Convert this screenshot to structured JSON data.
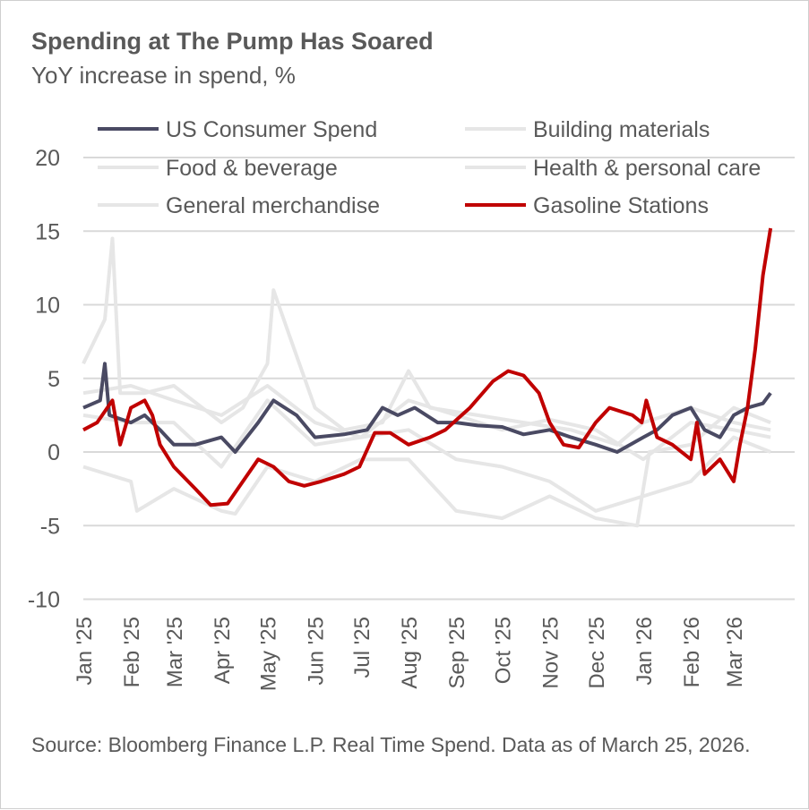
{
  "title": "Spending at The Pump Has Soared",
  "subtitle": "YoY increase in spend, %",
  "source": "Source: Bloomberg Finance L.P. Real Time Spend. Data as of March 25, 2026.",
  "chart_data": {
    "type": "line",
    "title": "Spending at The Pump Has Soared",
    "ylabel": "YoY increase in spend, %",
    "ylim": [
      -10,
      20
    ],
    "yticks": [
      "20",
      "15",
      "10",
      "5",
      "0",
      "-5",
      "-10"
    ],
    "ytick_values": [
      20,
      15,
      10,
      5,
      0,
      -5,
      -10
    ],
    "xlim": [
      "2025-01-01",
      "2026-03-25"
    ],
    "xticks": [
      "Jan '25",
      "Feb '25",
      "Mar '25",
      "Apr '25",
      "May '25",
      "Jun '25",
      "Jul '25",
      "Aug '25",
      "Sep '25",
      "Oct '25",
      "Nov '25",
      "Dec '25",
      "Jan '26",
      "Feb '26",
      "Mar '26"
    ],
    "xtick_dates": [
      "2025-01-01",
      "2025-02-01",
      "2025-03-01",
      "2025-04-01",
      "2025-05-01",
      "2025-06-01",
      "2025-07-01",
      "2025-08-01",
      "2025-09-01",
      "2025-10-01",
      "2025-11-01",
      "2025-12-01",
      "2026-01-01",
      "2026-02-01",
      "2026-03-01"
    ],
    "grid": true,
    "legend_position": "top",
    "series": [
      {
        "name": "Building materials",
        "color": "#e6e6e6",
        "points": [
          [
            "2025-01-01",
            6
          ],
          [
            "2025-01-15",
            9
          ],
          [
            "2025-01-20",
            14.5
          ],
          [
            "2025-01-25",
            4
          ],
          [
            "2025-02-10",
            4
          ],
          [
            "2025-03-01",
            4.5
          ],
          [
            "2025-04-01",
            2
          ],
          [
            "2025-04-15",
            3
          ],
          [
            "2025-05-01",
            6
          ],
          [
            "2025-05-05",
            11
          ],
          [
            "2025-05-15",
            8
          ],
          [
            "2025-06-01",
            3
          ],
          [
            "2025-06-20",
            1.5
          ],
          [
            "2025-07-15",
            2
          ],
          [
            "2025-08-01",
            5.5
          ],
          [
            "2025-08-15",
            3
          ],
          [
            "2025-09-15",
            2.5
          ],
          [
            "2025-10-15",
            2
          ],
          [
            "2025-11-15",
            1.5
          ],
          [
            "2025-12-15",
            0.5
          ],
          [
            "2026-01-01",
            2
          ],
          [
            "2026-02-01",
            3
          ],
          [
            "2026-03-01",
            2
          ],
          [
            "2026-03-25",
            1.5
          ]
        ]
      },
      {
        "name": "Food & beverage",
        "color": "#e6e6e6",
        "points": [
          [
            "2025-01-01",
            4
          ],
          [
            "2025-02-01",
            4.5
          ],
          [
            "2025-03-01",
            3.5
          ],
          [
            "2025-04-01",
            2.5
          ],
          [
            "2025-05-01",
            4.5
          ],
          [
            "2025-06-01",
            2
          ],
          [
            "2025-07-01",
            1
          ],
          [
            "2025-08-01",
            3.5
          ],
          [
            "2025-09-01",
            2.5
          ],
          [
            "2025-10-01",
            1.5
          ],
          [
            "2025-11-01",
            2.2
          ],
          [
            "2025-12-01",
            1.5
          ],
          [
            "2026-01-01",
            -0.5
          ],
          [
            "2026-02-01",
            2
          ],
          [
            "2026-03-01",
            1.5
          ],
          [
            "2026-03-25",
            1
          ]
        ]
      },
      {
        "name": "Health & personal care",
        "color": "#e6e6e6",
        "points": [
          [
            "2025-01-01",
            -1
          ],
          [
            "2025-02-01",
            -2
          ],
          [
            "2025-02-05",
            -4
          ],
          [
            "2025-03-01",
            -2.5
          ],
          [
            "2025-04-01",
            -4
          ],
          [
            "2025-04-10",
            -4.2
          ],
          [
            "2025-05-01",
            -1
          ],
          [
            "2025-06-01",
            -2
          ],
          [
            "2025-07-01",
            -0.5
          ],
          [
            "2025-08-01",
            -0.5
          ],
          [
            "2025-09-01",
            -4
          ],
          [
            "2025-10-01",
            -4.5
          ],
          [
            "2025-11-01",
            -3
          ],
          [
            "2025-12-01",
            -4.5
          ],
          [
            "2025-12-28",
            -5
          ],
          [
            "2026-01-05",
            0
          ],
          [
            "2026-02-01",
            0.5
          ],
          [
            "2026-03-01",
            3
          ],
          [
            "2026-03-25",
            2
          ]
        ]
      },
      {
        "name": "General merchandise",
        "color": "#e6e6e6",
        "points": [
          [
            "2025-01-01",
            2.5
          ],
          [
            "2025-02-01",
            2
          ],
          [
            "2025-03-01",
            2
          ],
          [
            "2025-04-01",
            -1
          ],
          [
            "2025-05-01",
            3.5
          ],
          [
            "2025-06-01",
            0.5
          ],
          [
            "2025-07-01",
            1
          ],
          [
            "2025-08-01",
            1.5
          ],
          [
            "2025-09-01",
            -0.5
          ],
          [
            "2025-10-01",
            -1
          ],
          [
            "2025-11-01",
            -2
          ],
          [
            "2025-12-01",
            -4
          ],
          [
            "2026-01-01",
            -3
          ],
          [
            "2026-02-01",
            -2
          ],
          [
            "2026-03-01",
            1
          ],
          [
            "2026-03-25",
            0
          ]
        ]
      },
      {
        "name": "US Consumer Spend",
        "color": "#4a4a63",
        "points": [
          [
            "2025-01-01",
            3
          ],
          [
            "2025-01-12",
            3.5
          ],
          [
            "2025-01-15",
            6
          ],
          [
            "2025-01-18",
            2.5
          ],
          [
            "2025-02-01",
            2
          ],
          [
            "2025-02-10",
            2.5
          ],
          [
            "2025-02-20",
            1.5
          ],
          [
            "2025-03-01",
            0.5
          ],
          [
            "2025-03-15",
            0.5
          ],
          [
            "2025-04-01",
            1
          ],
          [
            "2025-04-10",
            0
          ],
          [
            "2025-04-25",
            2
          ],
          [
            "2025-05-05",
            3.5
          ],
          [
            "2025-05-20",
            2.5
          ],
          [
            "2025-06-01",
            1
          ],
          [
            "2025-06-20",
            1.2
          ],
          [
            "2025-07-05",
            1.5
          ],
          [
            "2025-07-15",
            3
          ],
          [
            "2025-07-25",
            2.5
          ],
          [
            "2025-08-05",
            3
          ],
          [
            "2025-08-20",
            2
          ],
          [
            "2025-09-01",
            2
          ],
          [
            "2025-09-15",
            1.8
          ],
          [
            "2025-10-01",
            1.7
          ],
          [
            "2025-10-15",
            1.2
          ],
          [
            "2025-11-01",
            1.5
          ],
          [
            "2025-11-15",
            1
          ],
          [
            "2025-12-01",
            0.5
          ],
          [
            "2025-12-15",
            0
          ],
          [
            "2026-01-01",
            1
          ],
          [
            "2026-01-10",
            1.5
          ],
          [
            "2026-01-20",
            2.5
          ],
          [
            "2026-02-01",
            3
          ],
          [
            "2026-02-10",
            1.5
          ],
          [
            "2026-02-20",
            1
          ],
          [
            "2026-03-01",
            2.5
          ],
          [
            "2026-03-10",
            3
          ],
          [
            "2026-03-20",
            3.3
          ],
          [
            "2026-03-25",
            4
          ]
        ]
      },
      {
        "name": "Gasoline Stations",
        "color": "#c00000",
        "points": [
          [
            "2025-01-01",
            1.5
          ],
          [
            "2025-01-10",
            2
          ],
          [
            "2025-01-20",
            3.5
          ],
          [
            "2025-01-25",
            0.5
          ],
          [
            "2025-02-01",
            3
          ],
          [
            "2025-02-10",
            3.5
          ],
          [
            "2025-02-15",
            2.5
          ],
          [
            "2025-02-20",
            0.5
          ],
          [
            "2025-03-01",
            -1
          ],
          [
            "2025-03-15",
            -2.5
          ],
          [
            "2025-03-25",
            -3.6
          ],
          [
            "2025-04-05",
            -3.5
          ],
          [
            "2025-04-15",
            -2
          ],
          [
            "2025-04-25",
            -0.5
          ],
          [
            "2025-05-05",
            -1
          ],
          [
            "2025-05-15",
            -2
          ],
          [
            "2025-05-25",
            -2.3
          ],
          [
            "2025-06-05",
            -2
          ],
          [
            "2025-06-20",
            -1.5
          ],
          [
            "2025-06-30",
            -1
          ],
          [
            "2025-07-10",
            1.3
          ],
          [
            "2025-07-20",
            1.3
          ],
          [
            "2025-08-01",
            0.5
          ],
          [
            "2025-08-15",
            1
          ],
          [
            "2025-08-25",
            1.5
          ],
          [
            "2025-09-10",
            3
          ],
          [
            "2025-09-25",
            4.8
          ],
          [
            "2025-10-05",
            5.5
          ],
          [
            "2025-10-15",
            5.2
          ],
          [
            "2025-10-25",
            4
          ],
          [
            "2025-11-01",
            2
          ],
          [
            "2025-11-10",
            0.5
          ],
          [
            "2025-11-20",
            0.3
          ],
          [
            "2025-12-01",
            2
          ],
          [
            "2025-12-10",
            3
          ],
          [
            "2025-12-25",
            2.5
          ],
          [
            "2025-12-31",
            2
          ],
          [
            "2026-01-03",
            3.5
          ],
          [
            "2026-01-10",
            1
          ],
          [
            "2026-01-20",
            0.5
          ],
          [
            "2026-02-01",
            -0.5
          ],
          [
            "2026-02-05",
            2
          ],
          [
            "2026-02-10",
            -1.5
          ],
          [
            "2026-02-20",
            -0.5
          ],
          [
            "2026-03-01",
            -2
          ],
          [
            "2026-03-05",
            0.5
          ],
          [
            "2026-03-10",
            3
          ],
          [
            "2026-03-15",
            7
          ],
          [
            "2026-03-20",
            12
          ],
          [
            "2026-03-25",
            15.2
          ]
        ]
      }
    ],
    "legend": [
      "US Consumer Spend",
      "Building materials",
      "Food & beverage",
      "Health & personal care",
      "General merchandise",
      "Gasoline Stations"
    ]
  }
}
